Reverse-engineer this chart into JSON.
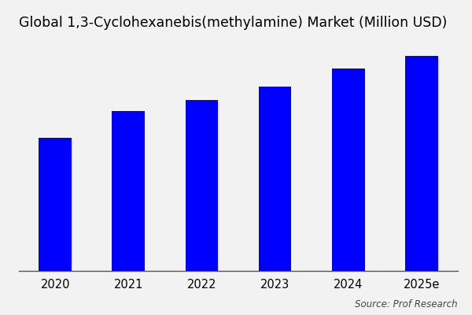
{
  "title": "Global 1,3-Cyclohexanebis(methylamine) Market (Million USD)",
  "categories": [
    "2020",
    "2021",
    "2022",
    "2023",
    "2024",
    "2025e"
  ],
  "values": [
    60,
    72,
    77,
    83,
    91,
    97
  ],
  "bar_color": "#0000ff",
  "background_color": "#f2f2f2",
  "source_text": "Source: Prof Research",
  "title_fontsize": 12.5,
  "tick_fontsize": 10.5,
  "source_fontsize": 8.5,
  "ylim": [
    0,
    105
  ],
  "bar_width": 0.45
}
